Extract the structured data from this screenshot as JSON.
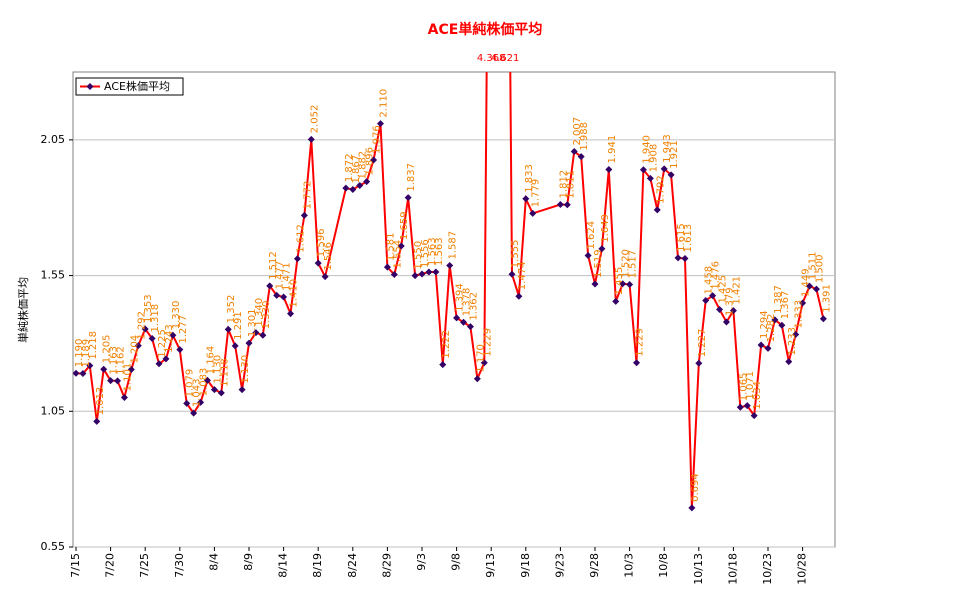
{
  "chart_data": {
    "type": "line",
    "title": "ACE単純株価平均",
    "y_label": "単純株価平均",
    "x": [
      "7/15",
      "7/16",
      "7/17",
      "7/18",
      "7/19",
      "7/20",
      "7/21",
      "7/22",
      "7/23",
      "7/24",
      "7/25",
      "7/26",
      "7/27",
      "7/28",
      "7/29",
      "7/30",
      "7/31",
      "8/1",
      "8/2",
      "8/3",
      "8/4",
      "8/5",
      "8/6",
      "8/7",
      "8/8",
      "8/9",
      "8/10",
      "8/11",
      "8/12",
      "8/13",
      "8/14",
      "8/15",
      "8/16",
      "8/17",
      "8/18",
      "8/19",
      "8/20",
      "8/23",
      "8/24",
      "8/25",
      "8/26",
      "8/27",
      "8/28",
      "8/29",
      "8/30",
      "8/31",
      "9/1",
      "9/2",
      "9/3",
      "9/4",
      "9/5",
      "9/6",
      "9/7",
      "9/8",
      "9/9",
      "9/10",
      "9/11",
      "9/12",
      "9/13",
      "9/15",
      "9/16",
      "9/17",
      "9/18",
      "9/19",
      "9/23",
      "9/24",
      "9/25",
      "9/26",
      "9/27",
      "9/28",
      "9/29",
      "9/30",
      "10/1",
      "10/2",
      "10/3",
      "10/4",
      "10/5",
      "10/6",
      "10/7",
      "10/8",
      "10/9",
      "10/10",
      "10/11",
      "10/12",
      "10/13",
      "10/14",
      "10/15",
      "10/16",
      "10/17",
      "10/18",
      "10/19",
      "10/20",
      "10/21",
      "10/22",
      "10/23",
      "10/24",
      "10/25",
      "10/26",
      "10/27",
      "10/28",
      "10/29",
      "10/30",
      "10/31"
    ],
    "series": [
      {
        "name": "ACE株価平均",
        "color": "#ff0000",
        "marker_color": "#330066",
        "values": [
          1.19,
          1.189,
          1.218,
          1.013,
          1.205,
          1.163,
          1.162,
          1.101,
          1.204,
          1.292,
          1.353,
          1.318,
          1.225,
          1.243,
          1.33,
          1.277,
          1.079,
          1.043,
          1.083,
          1.164,
          1.13,
          1.118,
          1.352,
          1.291,
          1.13,
          1.301,
          1.34,
          1.33,
          1.512,
          1.477,
          1.471,
          1.41,
          1.612,
          1.772,
          2.052,
          1.596,
          1.546,
          1.872,
          1.867,
          1.882,
          1.896,
          1.976,
          2.11,
          1.581,
          1.554,
          1.659,
          1.837,
          1.55,
          1.556,
          1.563,
          1.563,
          1.222,
          1.587,
          1.394,
          1.378,
          1.362,
          1.17,
          1.229,
          4.368,
          4.621,
          1.555,
          1.474,
          1.833,
          1.779,
          1.812,
          1.811,
          2.007,
          1.988,
          1.624,
          1.519,
          1.649,
          1.941,
          1.455,
          1.52,
          1.517,
          1.229,
          1.94,
          1.908,
          1.792,
          1.943,
          1.921,
          1.615,
          1.613,
          0.694,
          1.227,
          1.458,
          1.476,
          1.425,
          1.379,
          1.421,
          1.065,
          1.071,
          1.034,
          1.294,
          1.282,
          1.387,
          1.367,
          1.233,
          1.333,
          1.449,
          1.511,
          1.5,
          1.391
        ],
        "value_labels": [
          "1.190",
          "1.189",
          "1.218",
          "1.013",
          "1.205",
          "1.163",
          "1.162",
          "1.101",
          "1.204",
          "1.292",
          "1.353",
          "1.318",
          "1.225",
          "1.243",
          "1.330",
          "1.277",
          "1.079",
          "1.043",
          "1.083",
          "1.164",
          "1.130",
          "1.118",
          "1.352",
          "1.291",
          "1.130",
          "1.301",
          "1.340",
          "1.330",
          "1.512",
          "1.477",
          "1.471",
          "1.410",
          "1.612",
          "1.772",
          "2.052",
          "1.596",
          "1.546",
          "1.872",
          "1.867",
          "1.882",
          "1.896",
          "1.976",
          "2.110",
          "1.581",
          "1.554",
          "1.659",
          "1.837",
          "1.550",
          "1.556",
          "1.563",
          "1.563",
          "1.222",
          "1.587",
          "1.394",
          "1.378",
          "1.362",
          "1.170",
          "1.229",
          "4.368",
          "4.621",
          "1.555",
          "1.474",
          "1.833",
          "1.779",
          "1.812",
          "1.811",
          "2.007",
          "1.988",
          "1.624",
          "1.519",
          "1.649",
          "1.941",
          "1.455",
          "1.520",
          "1.517",
          "1.229",
          "1.940",
          "1.908",
          "1.792",
          "1.943",
          "1.921",
          "1.615",
          "1.613",
          "0.694",
          "1.227",
          "1.458",
          "1.476",
          "1.425",
          "1.379",
          "1.421",
          "1.065",
          "1.071",
          "1.034",
          "1.294",
          "1.282",
          "1.387",
          "1.367",
          "1.233",
          "1.333",
          "1.449",
          "1.511",
          "1.500",
          "1.391"
        ]
      }
    ],
    "ylim": [
      0.55,
      2.3
    ],
    "yticks": [
      0.55,
      1.05,
      1.55,
      2.05
    ],
    "xticks": [
      "7/15",
      "7/20",
      "7/25",
      "7/30",
      "8/4",
      "8/9",
      "8/14",
      "8/19",
      "8/24",
      "8/29",
      "9/3",
      "9/8",
      "9/13",
      "9/18",
      "9/23",
      "9/28",
      "10/3",
      "10/8",
      "10/13",
      "10/18",
      "10/23",
      "10/28"
    ],
    "grid": true,
    "legend": "top-left"
  }
}
